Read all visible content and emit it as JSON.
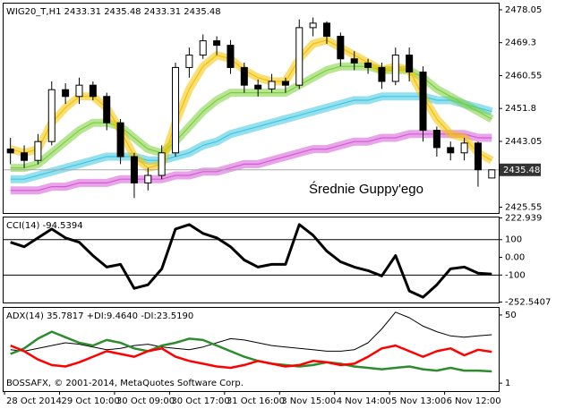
{
  "chart_data": [
    {
      "type": "candlestick",
      "title": "WIG20_T,H1  2433.31 2435.48 2433.31 2435.48",
      "annotation": "Średnie Guppy'ego",
      "categories": [
        null,
        "28 Oct 2014",
        null,
        null,
        null,
        "29 Oct 10:00",
        null,
        null,
        null,
        "30 Oct 09:00",
        null,
        null,
        null,
        "30 Oct 17:00",
        null,
        null,
        null,
        "31 Oct 16:00",
        null,
        null,
        null,
        "3 Nov 15:00",
        null,
        null,
        null,
        "4 Nov 14:00",
        null,
        null,
        null,
        "5 Nov 13:00",
        null,
        null,
        null,
        "6 Nov 12:00",
        null,
        null
      ],
      "open": [
        2441,
        2440,
        2438,
        2443,
        2456.8,
        2455,
        2458,
        2455,
        2448,
        2439,
        2432,
        2434,
        2440,
        2462.7,
        2466,
        2469.8,
        2468.6,
        2462.7,
        2458,
        2457,
        2459,
        2458,
        2473.3,
        2474.5,
        2471,
        2465,
        2463.9,
        2462.7,
        2459,
        2466,
        2461.5,
        2446,
        2441.4,
        2440,
        2442.6,
        2433.31
      ],
      "high": [
        2444,
        2442,
        2445,
        2459,
        2458.5,
        2460,
        2459,
        2456,
        2449,
        2440,
        2436,
        2442,
        2464,
        2468,
        2471.5,
        2471,
        2470,
        2464,
        2459.5,
        2461,
        2460,
        2475.5,
        2476,
        2475,
        2472,
        2467,
        2465,
        2464,
        2468,
        2468,
        2463,
        2447,
        2443,
        2444,
        2443,
        2435.48
      ],
      "low": [
        2437,
        2436,
        2437,
        2442,
        2453,
        2453,
        2454,
        2446,
        2437,
        2428,
        2430,
        2433,
        2439,
        2460,
        2465,
        2466,
        2461,
        2456,
        2455,
        2456,
        2456,
        2457,
        2471,
        2469,
        2463,
        2462,
        2461,
        2457,
        2458,
        2459,
        2443,
        2439,
        2438,
        2438,
        2431,
        2433.31
      ],
      "close": [
        2440,
        2438,
        2443,
        2456.8,
        2455,
        2458,
        2455,
        2448,
        2439,
        2432,
        2434,
        2440,
        2462.7,
        2466,
        2469.8,
        2468.6,
        2462.7,
        2458,
        2457,
        2459,
        2458,
        2473.3,
        2474.5,
        2471,
        2465,
        2463.9,
        2462.7,
        2459,
        2466,
        2461.5,
        2446,
        2441.4,
        2440,
        2442.6,
        2435.5,
        2435.48
      ],
      "up_color": "#ffffff",
      "down_color": "#000000",
      "series": [
        {
          "color": "#d65ad6",
          "values": [
            2430,
            2430,
            2430,
            2431,
            2431,
            2432,
            2432,
            2432,
            2433,
            2433,
            2433,
            2433,
            2434,
            2434,
            2435,
            2435,
            2436,
            2437,
            2437,
            2438,
            2439,
            2440,
            2441,
            2441,
            2442,
            2443,
            2443,
            2444,
            2444,
            2445,
            2445,
            2445,
            2445,
            2445,
            2444,
            2444
          ]
        },
        {
          "color": "#3ec7e0",
          "values": [
            2433,
            2433,
            2434,
            2435,
            2436,
            2437,
            2438,
            2439,
            2439,
            2439,
            2438,
            2438,
            2439,
            2440,
            2442,
            2443,
            2445,
            2446,
            2447,
            2448,
            2449,
            2450,
            2451,
            2452,
            2453,
            2454,
            2454,
            2455,
            2455,
            2455,
            2455,
            2454,
            2454,
            2453,
            2452,
            2451
          ]
        },
        {
          "color": "#7ccf3a",
          "values": [
            2436,
            2436,
            2437,
            2440,
            2443,
            2446,
            2448,
            2448,
            2447,
            2444,
            2441,
            2440,
            2443,
            2447,
            2451,
            2454,
            2456,
            2456,
            2456,
            2456,
            2456,
            2458,
            2460,
            2462,
            2463,
            2463,
            2463,
            2462,
            2462,
            2462,
            2460,
            2457,
            2455,
            2453,
            2451,
            2449
          ]
        },
        {
          "color": "#f2c200",
          "values": [
            2441,
            2440,
            2441,
            2448,
            2452,
            2455,
            2455,
            2452,
            2446,
            2439,
            2436,
            2437,
            2448,
            2457,
            2463,
            2466,
            2465,
            2462,
            2460,
            2459,
            2459,
            2465,
            2469,
            2470,
            2468,
            2466,
            2464,
            2462,
            2463,
            2462,
            2455,
            2449,
            2445,
            2444,
            2440,
            2438
          ]
        }
      ],
      "ylim": [
        2424,
        2479.7
      ],
      "yticks": [
        2478.05,
        2469.3,
        2460.55,
        2451.8,
        2443.05,
        2425.55
      ],
      "last_price": 2435.48
    },
    {
      "type": "line",
      "title": "CCI(14) -94.5394",
      "series": [
        {
          "color": "#000000",
          "values": [
            85,
            60,
            110,
            160,
            110,
            85,
            10,
            -55,
            -40,
            -175,
            -155,
            -65,
            160,
            185,
            135,
            110,
            60,
            -15,
            -55,
            -40,
            -40,
            185,
            125,
            35,
            -25,
            -55,
            -75,
            -105,
            10,
            -190,
            -225,
            -155,
            -65,
            -55,
            -90,
            -94.5394
          ]
        }
      ],
      "ylim": [
        -255,
        225
      ],
      "yticks": [
        222.939,
        100,
        {
          "value": 0,
          "label": "0.00"
        },
        -100,
        -252.5407
      ],
      "levels": [
        100,
        -100
      ]
    },
    {
      "type": "line",
      "title": "ADX(14) 35.7817 +DI:9.4640 -DI:23.5190",
      "annotation": "BOSSAFX, © 2001-2014, MetaQuotes Software Corp.",
      "series": [
        {
          "color": "#000000",
          "values": [
            25,
            24,
            26,
            28,
            30,
            29,
            27,
            25,
            26,
            28,
            29,
            27,
            26,
            25,
            27,
            30,
            33,
            32,
            30,
            28,
            27,
            26,
            25,
            24,
            24,
            25,
            30,
            40,
            52,
            48,
            42,
            38,
            35,
            34,
            35,
            35.7817
          ]
        },
        {
          "color": "#2e8b2e",
          "values": [
            22,
            26,
            33,
            38,
            34,
            30,
            28,
            32,
            30,
            26,
            24,
            28,
            30,
            33,
            32,
            28,
            24,
            20,
            17,
            15,
            14,
            13,
            14,
            16,
            15,
            13,
            12,
            11,
            12,
            13,
            11,
            10,
            12,
            10,
            10,
            9.464
          ]
        },
        {
          "color": "#ff0000",
          "values": [
            28,
            24,
            18,
            14,
            13,
            16,
            20,
            24,
            22,
            20,
            24,
            26,
            20,
            17,
            15,
            13,
            12,
            14,
            17,
            15,
            13,
            14,
            17,
            16,
            14,
            15,
            20,
            26,
            28,
            24,
            20,
            24,
            26,
            21,
            25,
            23.519
          ]
        }
      ],
      "ylim": [
        -4.7,
        55.1
      ],
      "yticks": [
        50,
        1
      ]
    }
  ]
}
